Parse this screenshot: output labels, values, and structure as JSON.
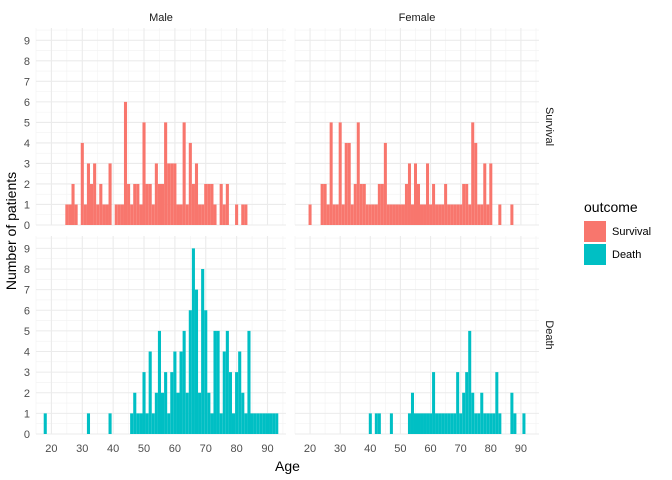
{
  "chart_data": {
    "type": "bar",
    "xlabel": "Age",
    "ylabel": "Number of patients",
    "xlim": [
      15,
      96
    ],
    "ylim": [
      0,
      9.6
    ],
    "x_ticks": [
      20,
      30,
      40,
      50,
      60,
      70,
      80,
      90
    ],
    "y_ticks": [
      0,
      1,
      2,
      3,
      4,
      5,
      6,
      7,
      8,
      9
    ],
    "grid": true,
    "bin_width": 1,
    "legend": {
      "title": "outcome",
      "position": "right",
      "entries": [
        {
          "label": "Survival",
          "color": "#F8766D"
        },
        {
          "label": "Death",
          "color": "#00BFC4"
        }
      ]
    },
    "facet_columns": [
      "Male",
      "Female"
    ],
    "facet_rows": [
      "Survival",
      "Death"
    ],
    "panels": [
      {
        "column": "Male",
        "row": "Survival",
        "series": "Survival",
        "color": "#F8766D",
        "x": [
          25,
          26,
          27,
          28,
          30,
          31,
          32,
          33,
          34,
          35,
          36,
          37,
          38,
          39,
          41,
          42,
          43,
          44,
          45,
          46,
          47,
          48,
          49,
          50,
          51,
          52,
          53,
          54,
          55,
          56,
          57,
          58,
          59,
          60,
          61,
          62,
          63,
          64,
          65,
          66,
          67,
          68,
          69,
          70,
          71,
          72,
          73,
          75,
          76,
          77,
          80,
          82,
          83
        ],
        "y": [
          1,
          1,
          2,
          1,
          4,
          1,
          3,
          2,
          3,
          1,
          2,
          1,
          1,
          3,
          1,
          1,
          1,
          6,
          2,
          1,
          2,
          2,
          1,
          5,
          2,
          2,
          1,
          3,
          2,
          2,
          5,
          3,
          3,
          3,
          1,
          1,
          5,
          1,
          4,
          2,
          3,
          1,
          1,
          2,
          2,
          2,
          1,
          2,
          1,
          2,
          1,
          1,
          1
        ]
      },
      {
        "column": "Female",
        "row": "Survival",
        "series": "Survival",
        "color": "#F8766D",
        "x": [
          20,
          24,
          25,
          26,
          27,
          28,
          29,
          30,
          31,
          32,
          33,
          34,
          35,
          36,
          37,
          38,
          39,
          40,
          41,
          42,
          43,
          44,
          45,
          46,
          47,
          48,
          49,
          50,
          51,
          52,
          53,
          54,
          55,
          56,
          57,
          58,
          59,
          60,
          61,
          62,
          63,
          64,
          65,
          66,
          67,
          68,
          69,
          70,
          71,
          72,
          73,
          74,
          75,
          76,
          77,
          78,
          79,
          80,
          83,
          87
        ],
        "y": [
          1,
          2,
          2,
          1,
          5,
          1,
          1,
          5,
          1,
          4,
          4,
          1,
          2,
          5,
          2,
          2,
          1,
          1,
          1,
          1,
          2,
          2,
          4,
          1,
          1,
          1,
          1,
          1,
          1,
          2,
          3,
          1,
          3,
          2,
          1,
          1,
          3,
          1,
          2,
          1,
          1,
          1,
          2,
          1,
          1,
          1,
          1,
          1,
          2,
          2,
          1,
          5,
          4,
          1,
          1,
          3,
          1,
          3,
          1,
          1
        ]
      },
      {
        "column": "Male",
        "row": "Death",
        "series": "Death",
        "color": "#00BFC4",
        "x": [
          18,
          32,
          39,
          46,
          47,
          48,
          49,
          50,
          51,
          52,
          53,
          54,
          55,
          56,
          57,
          58,
          59,
          60,
          61,
          62,
          63,
          64,
          65,
          66,
          67,
          68,
          69,
          70,
          71,
          72,
          73,
          74,
          75,
          76,
          77,
          78,
          79,
          80,
          81,
          82,
          83,
          84,
          85,
          86,
          87,
          88,
          89,
          90,
          91,
          92,
          93
        ],
        "y": [
          1,
          1,
          1,
          1,
          2,
          1,
          1,
          3,
          1,
          4,
          1,
          2,
          5,
          2,
          3,
          1,
          3,
          4,
          2,
          4,
          5,
          2,
          6,
          9,
          7,
          2,
          8,
          6,
          2,
          1,
          5,
          5,
          1,
          4,
          5,
          3,
          1,
          3,
          4,
          2,
          1,
          5,
          1,
          1,
          1,
          1,
          1,
          1,
          1,
          1,
          1
        ]
      },
      {
        "column": "Female",
        "row": "Death",
        "series": "Death",
        "color": "#00BFC4",
        "x": [
          40,
          42,
          43,
          47,
          53,
          54,
          55,
          56,
          57,
          58,
          59,
          60,
          61,
          62,
          63,
          64,
          65,
          66,
          67,
          68,
          69,
          70,
          71,
          72,
          73,
          74,
          75,
          76,
          77,
          78,
          79,
          80,
          81,
          82,
          83,
          87,
          88,
          91
        ],
        "y": [
          1,
          1,
          1,
          1,
          1,
          2,
          1,
          1,
          1,
          1,
          1,
          1,
          3,
          1,
          1,
          1,
          1,
          1,
          1,
          1,
          3,
          1,
          2,
          3,
          5,
          2,
          1,
          1,
          2,
          1,
          1,
          1,
          1,
          3,
          1,
          2,
          1,
          1
        ]
      }
    ]
  }
}
